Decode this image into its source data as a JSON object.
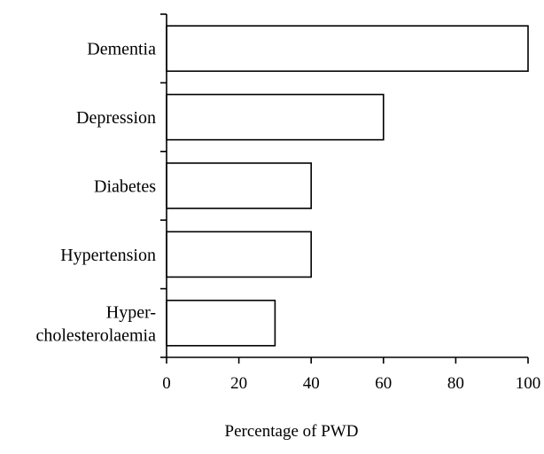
{
  "chart_data": {
    "type": "bar",
    "orientation": "horizontal",
    "categories": [
      "Dementia",
      "Depression",
      "Diabetes",
      "Hypertension",
      "Hyper-\ncholesterolaemia"
    ],
    "values": [
      100,
      60,
      40,
      40,
      30
    ],
    "xlabel": "Percentage of PWD",
    "ylabel": "",
    "xlim": [
      0,
      100
    ],
    "xticks": [
      0,
      20,
      40,
      60,
      80,
      100
    ],
    "tick_labels": [
      "0",
      "20",
      "40",
      "60",
      "80",
      "100"
    ],
    "grid": false,
    "legend": "none",
    "colors": {
      "bar_fill": "#ffffff",
      "bar_stroke": "#000000",
      "axis": "#000000"
    }
  }
}
